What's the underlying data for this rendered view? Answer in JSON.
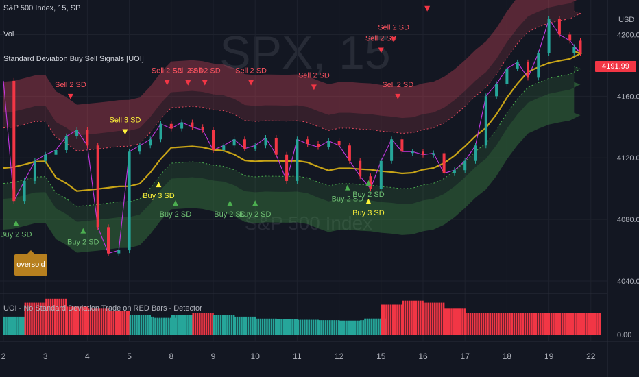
{
  "legend": {
    "symbol": "S&P 500 Index, 15, SP",
    "volume": "Vol",
    "indicator": "Standard Deviation Buy Sell Signals [UOI]",
    "sub_indicator": "UOI - No Standard Deviation Trade on RED Bars - Detector"
  },
  "watermark": {
    "line1": "SPX, 15",
    "line2": "S&P 500 Index"
  },
  "price_tag": "4191.99",
  "oversold_label": "oversold",
  "colors": {
    "background": "#131722",
    "bull": "#26a69a",
    "bear": "#f23645",
    "upper_band": "#e84a5f",
    "lower_band": "#4caf50",
    "mid_line": "#c8a417",
    "fast_line": "#c237e0",
    "label_yellow": "#fff43a"
  },
  "chart_data": [
    {
      "type": "line",
      "title": "S&P 500 Index, 15, SP",
      "currency": "USD",
      "x_ticks": [
        "2",
        "3",
        "4",
        "5",
        "8",
        "9",
        "10",
        "11",
        "12",
        "15",
        "16",
        "17",
        "18",
        "19",
        "22"
      ],
      "y_ticks": [
        "4040.00",
        "4080.00",
        "4120.00",
        "4160.00",
        "4200.00"
      ],
      "ylim": [
        4032,
        4218
      ],
      "last_price": 4191.99,
      "series": [
        {
          "name": "close",
          "x": [
            2,
            2.25,
            2.5,
            2.75,
            3,
            3.25,
            3.5,
            3.75,
            4,
            4.25,
            4.5,
            4.75,
            5,
            5.25,
            5.5,
            5.75,
            8,
            8.25,
            8.5,
            8.75,
            9,
            9.25,
            9.5,
            9.75,
            10,
            10.25,
            10.5,
            10.75,
            11,
            11.25,
            11.5,
            11.75,
            12,
            12.25,
            12.5,
            12.75,
            15,
            15.25,
            15.5,
            15.75,
            16,
            16.25,
            16.5,
            16.75,
            17,
            17.25,
            17.5,
            17.75,
            18,
            18.25,
            18.5,
            18.75,
            19,
            19.25,
            19.5,
            19.75,
            20
          ],
          "values": [
            4170,
            4092,
            4105,
            4118,
            4122,
            4125,
            4134,
            4138,
            4128,
            4075,
            4058,
            4060,
            4124,
            4128,
            4132,
            4142,
            4139,
            4143,
            4140,
            4138,
            4125,
            4128,
            4132,
            4126,
            4128,
            4133,
            4122,
            4105,
            4132,
            4129,
            4127,
            4131,
            4128,
            4118,
            4108,
            4100,
            4118,
            4132,
            4124,
            4124,
            4122,
            4123,
            4110,
            4112,
            4118,
            4128,
            4160,
            4168,
            4178,
            4182,
            4172,
            4188,
            4210,
            4200,
            4196,
            4188,
            4192
          ]
        }
      ],
      "signals": [
        {
          "label": "Sell 2 SD",
          "x": 3.6,
          "y": 4166
        },
        {
          "label": "Sell 3 SD",
          "x": 4.9,
          "y": 4143
        },
        {
          "label": "Sell 2 SD",
          "x": 5.9,
          "y": 4175
        },
        {
          "label": "Sell 2 SD",
          "x": 6.8,
          "y": 4175
        },
        {
          "label": "Sell 2 SD",
          "x": 7.8,
          "y": 4175
        },
        {
          "label": "Sell 2 SD",
          "x": 8.8,
          "y": 4175
        },
        {
          "label": "Sell 2 SD",
          "x": 9.9,
          "y": 4175
        },
        {
          "label": "Sell 2 SD",
          "x": 11.4,
          "y": 4172
        },
        {
          "label": "Sell 2 SD",
          "x": 13.8,
          "y": 4166
        },
        {
          "label": "Sell 2 SD",
          "x": 14.4,
          "y": 4196
        },
        {
          "label": "Sell 2 SD",
          "x": 15.3,
          "y": 4203
        },
        {
          "label": "Sell 2 SD",
          "x": 16.1,
          "y": 4223
        },
        {
          "label": "Buy 2 SD",
          "x": 2.3,
          "y": 4075
        },
        {
          "label": "Buy 2 SD",
          "x": 3.9,
          "y": 4070
        },
        {
          "label": "Buy 3 SD",
          "x": 6.1,
          "y": 4100
        },
        {
          "label": "Buy 2 SD",
          "x": 7.5,
          "y": 4088
        },
        {
          "label": "Buy 2 SD",
          "x": 9.4,
          "y": 4088
        },
        {
          "label": "Buy 2 SD",
          "x": 10.0,
          "y": 4088
        },
        {
          "label": "Buy 2 SD",
          "x": 12.2,
          "y": 4098
        },
        {
          "label": "Buy 2 SD",
          "x": 13.1,
          "y": 4101
        },
        {
          "label": "Buy 3 SD",
          "x": 13.1,
          "y": 4089
        }
      ]
    },
    {
      "type": "bar",
      "title": "UOI - No Standard Deviation Trade on RED Bars - Detector",
      "y_ticks": [
        "0.00"
      ],
      "x": [
        2,
        2.5,
        3,
        3.5,
        4,
        4.5,
        5,
        5.5,
        6,
        6.5,
        7,
        7.5,
        8,
        8.5,
        9,
        9.5,
        10,
        10.5,
        11,
        11.5,
        12,
        12.5,
        13,
        13.5,
        14,
        14.5,
        15,
        15.5,
        16,
        16.5,
        17
      ],
      "values": [
        0.45,
        0.8,
        0.9,
        0.7,
        0.65,
        0.6,
        0.5,
        0.45,
        0.4,
        0.4,
        0.42,
        0.45,
        0.5,
        0.55,
        0.5,
        0.45,
        0.4,
        0.38,
        0.37,
        0.36,
        0.35,
        0.36,
        0.4,
        0.42,
        0.4,
        0.55,
        0.75,
        0.85,
        0.8,
        0.65,
        0.55
      ]
    }
  ]
}
